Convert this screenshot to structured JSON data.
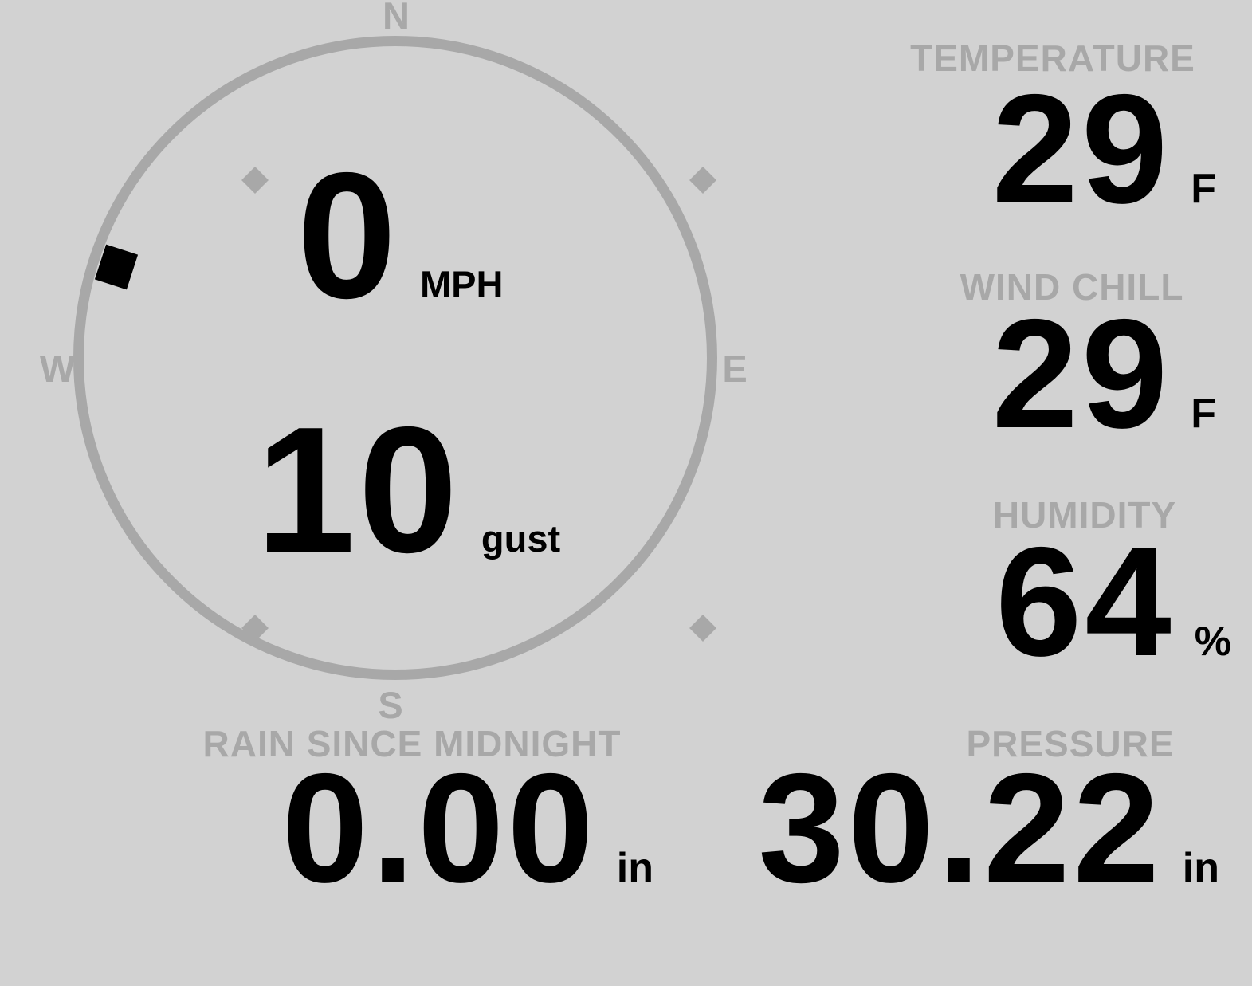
{
  "colors": {
    "background": "#d2d2d2",
    "muted_gray": "#a8a8a8",
    "ink": "#000000"
  },
  "compass": {
    "cardinals": {
      "north": "N",
      "east": "E",
      "south": "S",
      "west": "W"
    },
    "wind_speed": {
      "value": "0",
      "unit": "MPH"
    },
    "wind_gust": {
      "value": "10",
      "unit": "gust"
    },
    "direction_deg": 288
  },
  "stats": {
    "temperature": {
      "label": "TEMPERATURE",
      "value": "29",
      "unit": "F"
    },
    "wind_chill": {
      "label": "WIND CHILL",
      "value": "29",
      "unit": "F"
    },
    "humidity": {
      "label": "HUMIDITY",
      "value": "64",
      "unit": "%"
    },
    "rain": {
      "label": "RAIN SINCE MIDNIGHT",
      "value": "0.00",
      "unit": "in"
    },
    "pressure": {
      "label": "PRESSURE",
      "value": "30.22",
      "unit": "in"
    }
  }
}
